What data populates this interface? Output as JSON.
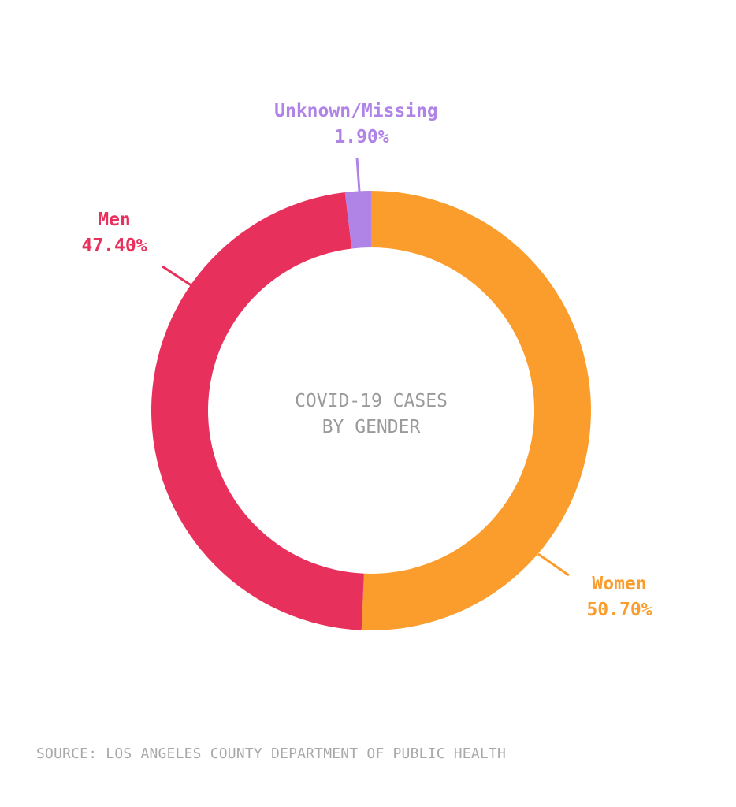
{
  "chart_data": {
    "type": "pie",
    "title_lines": [
      "COVID-19 CASES",
      "BY GENDER"
    ],
    "slices": [
      {
        "name": "Women",
        "value_label": "50.70%",
        "value": 50.7,
        "color": "#fb9d2d"
      },
      {
        "name": "Men",
        "value_label": "47.40%",
        "value": 47.4,
        "color": "#e8305d"
      },
      {
        "name": "Unknown/Missing",
        "value_label": "1.90%",
        "value": 1.9,
        "color": "#b083e6"
      }
    ],
    "source": "SOURCE: LOS ANGELES COUNTY DEPARTMENT OF PUBLIC HEALTH"
  }
}
